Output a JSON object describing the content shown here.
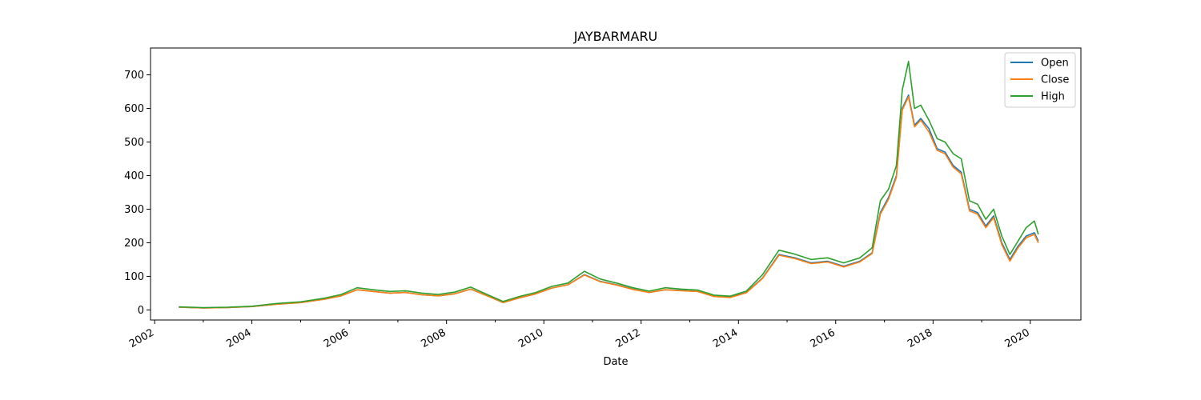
{
  "chart_data": {
    "type": "line",
    "title": "JAYBARMARU",
    "xlabel": "Date",
    "ylabel": "",
    "xlim": [
      "2001-12-01",
      "2021-01-15"
    ],
    "ylim": [
      -30,
      780
    ],
    "x_ticks": [
      "2002",
      "2004",
      "2006",
      "2008",
      "2010",
      "2012",
      "2014",
      "2016",
      "2018",
      "2020"
    ],
    "y_ticks": [
      0,
      100,
      200,
      300,
      400,
      500,
      600,
      700
    ],
    "grid": false,
    "legend": "top-right",
    "x": [
      "2002-07-01",
      "2003-01-01",
      "2003-07-01",
      "2004-01-01",
      "2004-07-01",
      "2005-01-01",
      "2005-07-01",
      "2005-11-01",
      "2006-03-01",
      "2006-07-01",
      "2006-11-01",
      "2007-03-01",
      "2007-07-01",
      "2007-11-01",
      "2008-03-01",
      "2008-07-01",
      "2008-11-01",
      "2009-03-01",
      "2009-07-01",
      "2009-11-01",
      "2010-03-01",
      "2010-07-01",
      "2010-11-01",
      "2011-03-01",
      "2011-07-01",
      "2011-11-01",
      "2012-03-01",
      "2012-07-01",
      "2012-11-01",
      "2013-03-01",
      "2013-07-01",
      "2013-11-01",
      "2014-03-01",
      "2014-07-01",
      "2014-11-01",
      "2015-03-01",
      "2015-07-01",
      "2015-11-01",
      "2016-03-01",
      "2016-07-01",
      "2016-10-01",
      "2016-12-01",
      "2017-02-01",
      "2017-04-01",
      "2017-05-15",
      "2017-07-01",
      "2017-08-15",
      "2017-10-01",
      "2017-12-01",
      "2018-02-01",
      "2018-04-01",
      "2018-06-01",
      "2018-08-01",
      "2018-10-01",
      "2018-12-01",
      "2019-02-01",
      "2019-04-01",
      "2019-06-01",
      "2019-08-01",
      "2019-10-01",
      "2019-12-01",
      "2020-02-01",
      "2020-03-01"
    ],
    "series": [
      {
        "name": "Open",
        "color": "#1f77b4",
        "values": [
          8,
          6,
          7,
          10,
          17,
          22,
          32,
          42,
          60,
          55,
          50,
          52,
          45,
          42,
          48,
          62,
          42,
          22,
          36,
          48,
          65,
          75,
          105,
          85,
          75,
          62,
          52,
          60,
          58,
          55,
          40,
          38,
          52,
          95,
          165,
          155,
          140,
          145,
          130,
          145,
          170,
          290,
          335,
          400,
          600,
          640,
          550,
          570,
          540,
          480,
          470,
          430,
          410,
          300,
          290,
          250,
          280,
          200,
          150,
          190,
          220,
          230,
          205
        ]
      },
      {
        "name": "Close",
        "color": "#ff7f0e",
        "values": [
          8,
          6,
          7,
          10,
          17,
          22,
          32,
          42,
          60,
          55,
          50,
          52,
          45,
          42,
          48,
          62,
          42,
          22,
          36,
          48,
          65,
          75,
          104,
          84,
          74,
          61,
          52,
          60,
          57,
          55,
          40,
          37,
          51,
          94,
          163,
          153,
          138,
          143,
          128,
          143,
          168,
          285,
          330,
          395,
          595,
          635,
          545,
          565,
          530,
          475,
          465,
          425,
          405,
          295,
          285,
          245,
          275,
          195,
          145,
          185,
          215,
          225,
          200
        ]
      },
      {
        "name": "High",
        "color": "#2ca02c",
        "values": [
          9,
          7,
          8,
          11,
          19,
          24,
          35,
          46,
          66,
          60,
          55,
          57,
          50,
          46,
          53,
          68,
          46,
          25,
          40,
          52,
          70,
          80,
          115,
          92,
          80,
          66,
          56,
          66,
          62,
          59,
          44,
          41,
          56,
          105,
          178,
          166,
          150,
          155,
          140,
          155,
          185,
          325,
          360,
          430,
          655,
          740,
          600,
          610,
          565,
          510,
          500,
          465,
          450,
          325,
          315,
          270,
          300,
          220,
          165,
          205,
          245,
          265,
          225
        ]
      }
    ]
  }
}
